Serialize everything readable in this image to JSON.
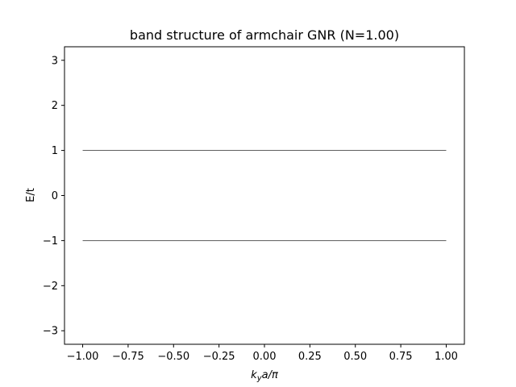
{
  "chart_data": {
    "type": "line",
    "title": "band structure of armchair GNR (N=1.00)",
    "xlabel": {
      "k": "k",
      "sub": "y",
      "rest": "a/π"
    },
    "ylabel": "E/t",
    "xlim": [
      -1.1,
      1.1
    ],
    "ylim": [
      -3.3,
      3.3
    ],
    "xticks": [
      -1.0,
      -0.75,
      -0.5,
      -0.25,
      0.0,
      0.25,
      0.5,
      0.75,
      1.0
    ],
    "xtick_labels": [
      "−1.00",
      "−0.75",
      "−0.50",
      "−0.25",
      "0.00",
      "0.25",
      "0.50",
      "0.75",
      "1.00"
    ],
    "yticks": [
      -3,
      -2,
      -1,
      0,
      1,
      2,
      3
    ],
    "ytick_labels": [
      "−3",
      "−2",
      "−1",
      "0",
      "1",
      "2",
      "3"
    ],
    "grid": false,
    "line_color": "#000000",
    "series": [
      {
        "x": [
          -1.0,
          1.0
        ],
        "y": [
          1.0,
          1.0
        ]
      },
      {
        "x": [
          -1.0,
          1.0
        ],
        "y": [
          -1.0,
          -1.0
        ]
      }
    ]
  }
}
